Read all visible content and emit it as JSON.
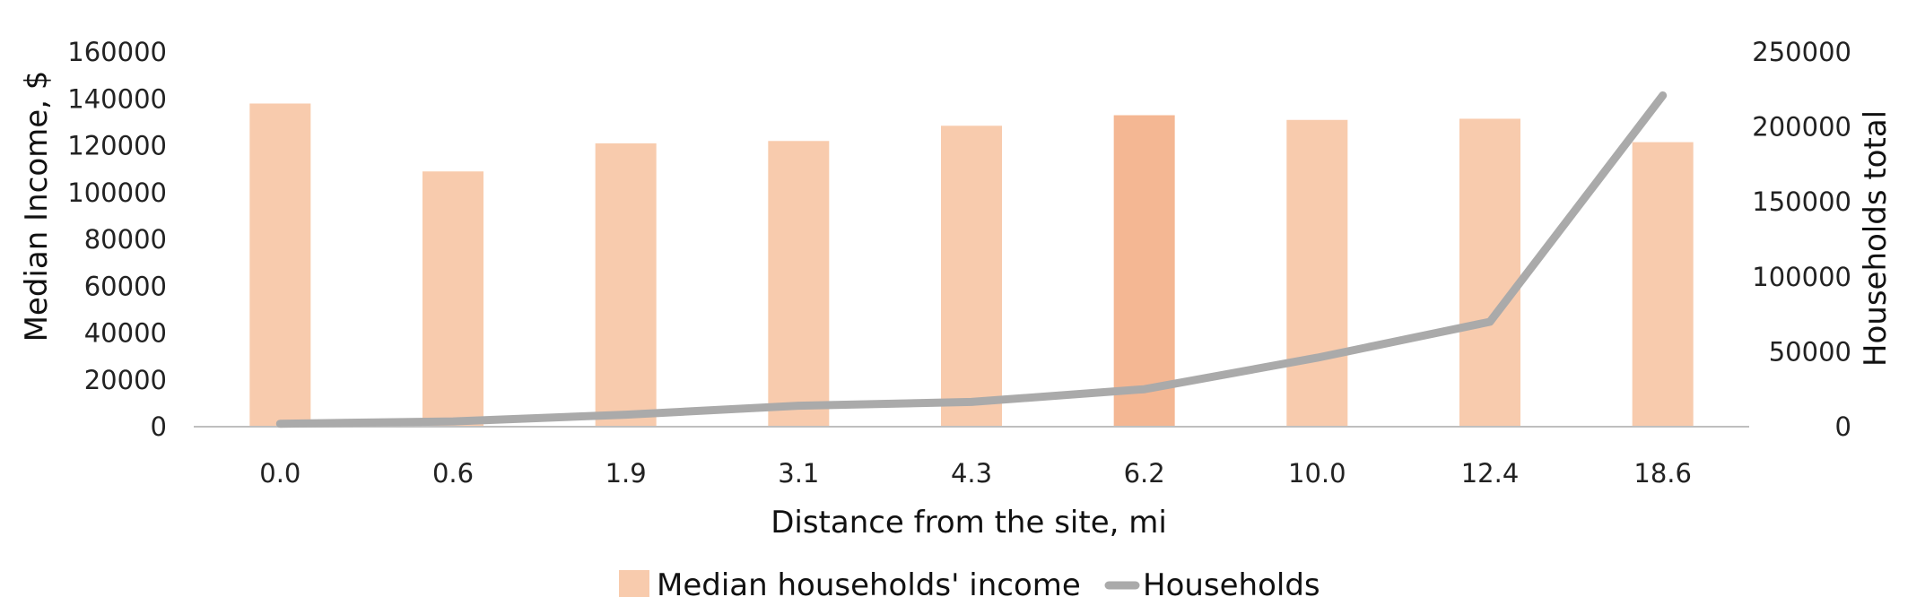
{
  "chart_data": {
    "type": "bar",
    "categories": [
      "0.0",
      "0.6",
      "1.9",
      "3.1",
      "4.3",
      "6.2",
      "10.0",
      "12.4",
      "18.6"
    ],
    "xlabel": "Distance from the site, mi",
    "ylabel": "Median Income, $",
    "y2label": "Households total",
    "ylim": [
      0,
      160000
    ],
    "y2lim": [
      0,
      250000
    ],
    "yticks": [
      "0",
      "20000",
      "40000",
      "60000",
      "80000",
      "100000",
      "120000",
      "140000",
      "160000"
    ],
    "y2ticks": [
      "0",
      "50000",
      "100000",
      "150000",
      "200000",
      "250000"
    ],
    "grid": false,
    "legend_position": "bottom",
    "highlight_index": 5,
    "series": [
      {
        "name": "Median households' income",
        "type": "bar",
        "axis": "left",
        "color": "#F8CBAD",
        "highlight_color": "#F4B793",
        "values": [
          138000,
          109000,
          121000,
          122000,
          128500,
          133000,
          131000,
          131500,
          121500
        ]
      },
      {
        "name": "Households",
        "type": "line",
        "axis": "right",
        "color": "#AAAAAA",
        "values": [
          2000,
          3500,
          8000,
          14000,
          16500,
          25000,
          46000,
          70000,
          221000
        ]
      }
    ]
  }
}
